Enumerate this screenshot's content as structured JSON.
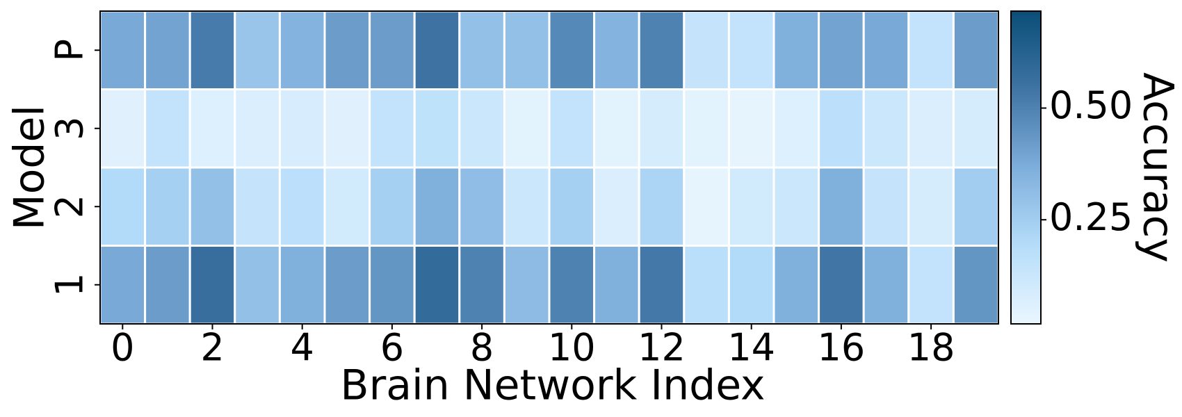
{
  "chart_data": {
    "type": "heatmap",
    "xlabel": "Brain Network Index",
    "ylabel": "Model",
    "colorbar_label": "Accuracy",
    "x": [
      0,
      1,
      2,
      3,
      4,
      5,
      6,
      7,
      8,
      9,
      10,
      11,
      12,
      13,
      14,
      15,
      16,
      17,
      18,
      19
    ],
    "xlim": [
      -0.5,
      19.5
    ],
    "xticks": [
      0,
      2,
      4,
      6,
      8,
      10,
      12,
      14,
      16,
      18
    ],
    "y": [
      "P",
      "3",
      "2",
      "1"
    ],
    "values": [
      [
        0.38,
        0.4,
        0.52,
        0.28,
        0.35,
        0.42,
        0.42,
        0.55,
        0.3,
        0.3,
        0.48,
        0.35,
        0.5,
        0.14,
        0.15,
        0.36,
        0.4,
        0.38,
        0.15,
        0.42
      ],
      [
        0.05,
        0.15,
        0.06,
        0.07,
        0.08,
        0.05,
        0.15,
        0.16,
        0.12,
        0.04,
        0.15,
        0.04,
        0.09,
        0.04,
        0.03,
        0.06,
        0.17,
        0.12,
        0.07,
        0.09
      ],
      [
        0.2,
        0.24,
        0.3,
        0.14,
        0.17,
        0.1,
        0.24,
        0.36,
        0.31,
        0.12,
        0.24,
        0.07,
        0.22,
        0.03,
        0.1,
        0.12,
        0.36,
        0.14,
        0.09,
        0.25
      ],
      [
        0.38,
        0.42,
        0.57,
        0.3,
        0.36,
        0.42,
        0.44,
        0.58,
        0.5,
        0.32,
        0.5,
        0.36,
        0.53,
        0.18,
        0.2,
        0.36,
        0.54,
        0.36,
        0.15,
        0.44
      ]
    ],
    "zlim": [
      0.017,
      0.717
    ],
    "zticks": [
      0.25,
      {
        "value": 0.5,
        "label": "0.50"
      }
    ],
    "colormap": [
      "#eaf6fe",
      "#b5ddfa",
      "#7eaedb",
      "#3f74a4",
      "#0a4e78"
    ]
  }
}
